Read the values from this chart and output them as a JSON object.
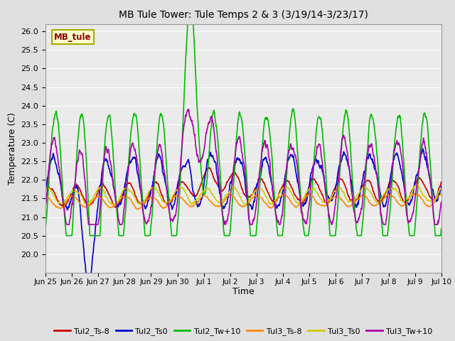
{
  "title": "MB Tule Tower: Tule Temps 2 & 3 (3/19/14-3/23/17)",
  "xlabel": "Time",
  "ylabel": "Temperature (C)",
  "ylim": [
    19.5,
    26.2
  ],
  "yticks": [
    20.0,
    20.5,
    21.0,
    21.5,
    22.0,
    22.5,
    23.0,
    23.5,
    24.0,
    24.5,
    25.0,
    25.5,
    26.0
  ],
  "background_color": "#e0e0e0",
  "plot_bg_color": "#ebebeb",
  "grid_color": "#ffffff",
  "series": {
    "Tul2_Ts-8": {
      "color": "#cc0000",
      "lw": 1.2
    },
    "Tul2_Ts0": {
      "color": "#0000cc",
      "lw": 1.2
    },
    "Tul2_Tw+10": {
      "color": "#00bb00",
      "lw": 1.2
    },
    "Tul3_Ts-8": {
      "color": "#ff8800",
      "lw": 1.2
    },
    "Tul3_Ts0": {
      "color": "#cccc00",
      "lw": 1.2
    },
    "Tul3_Tw+10": {
      "color": "#aa00aa",
      "lw": 1.2
    }
  },
  "xtick_labels": [
    "Jun 25",
    "Jun 26",
    "Jun 27",
    "Jun 28",
    "Jun 29",
    "Jun 30",
    "Jul 1",
    "Jul 2",
    "Jul 3",
    "Jul 4",
    "Jul 5",
    "Jul 6",
    "Jul 7",
    "Jul 8",
    "Jul 9",
    "Jul 10"
  ],
  "n_points": 1500,
  "seed": 42
}
